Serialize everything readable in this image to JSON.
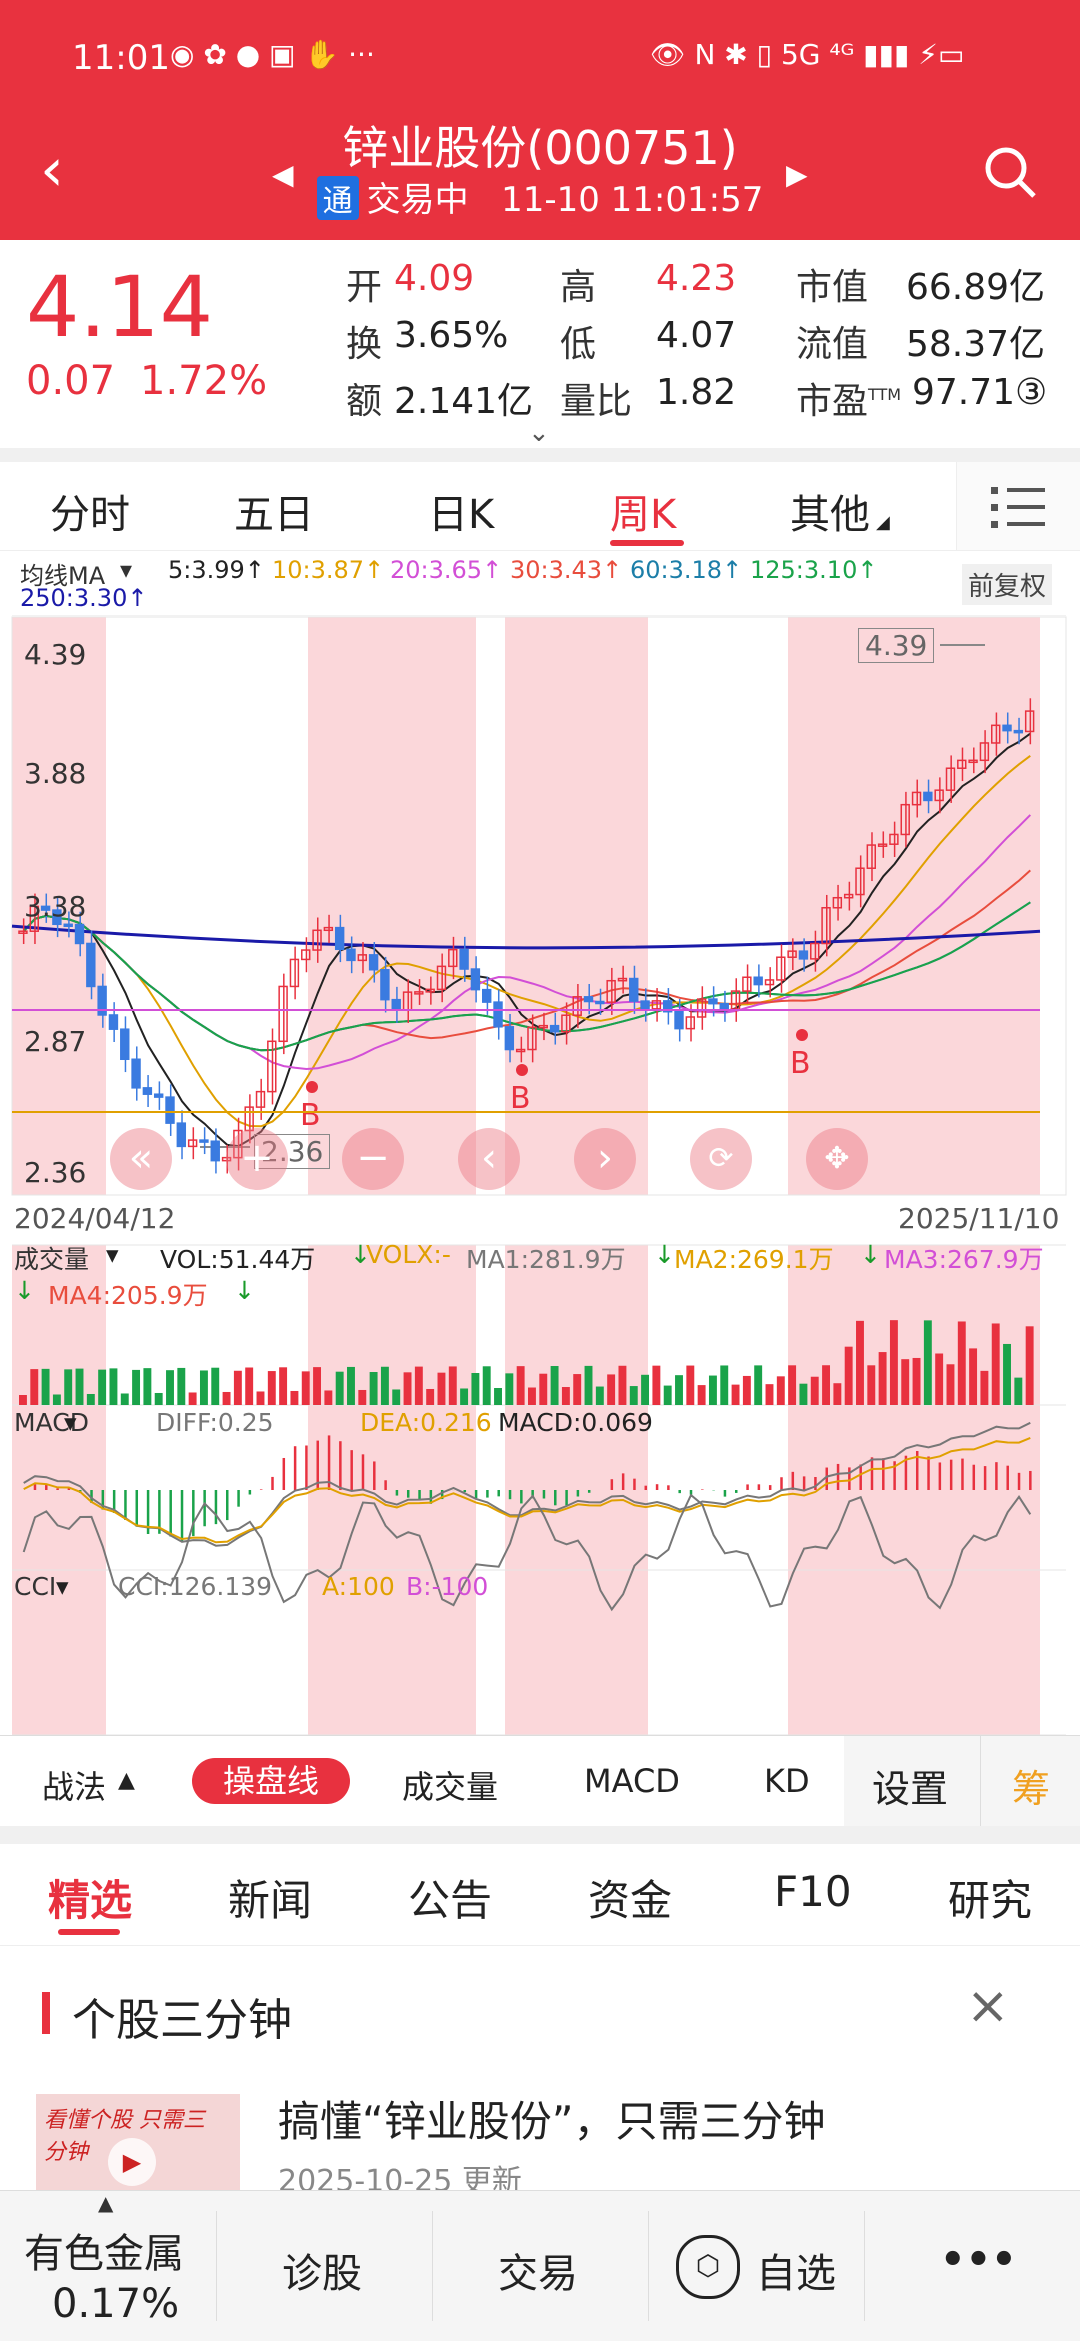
{
  "status": {
    "time": "11:01",
    "signal": "5G ⁴ᴳ",
    "battery": "⚡"
  },
  "header": {
    "title": "锌业股份(000751)",
    "tong": "通",
    "state": "交易中",
    "datetime": "11-10 11:01:57"
  },
  "quote": {
    "price": "4.14",
    "change": "0.07",
    "change_pct": "1.72%",
    "open_label": "开",
    "open": "4.09",
    "high_label": "高",
    "high": "4.23",
    "mcap_label": "市值",
    "mcap": "66.89亿",
    "turnover_label": "换",
    "turnover": "3.65%",
    "low_label": "低",
    "low": "4.07",
    "float_label": "流值",
    "float": "58.37亿",
    "amount_label": "额",
    "amount": "2.141亿",
    "volratio_label": "量比",
    "volratio": "1.82",
    "pe_label": "市盈",
    "pe_sup": "TTM",
    "pe": "97.71③"
  },
  "ktabs": [
    "分时",
    "五日",
    "日K",
    "周K",
    "其他"
  ],
  "ma_line": {
    "label": "均线MA",
    "items": [
      {
        "text": "5:3.99↑",
        "color": "#222"
      },
      {
        "text": "10:3.87↑",
        "color": "#e0a000"
      },
      {
        "text": "20:3.65↑",
        "color": "#d24fd6"
      },
      {
        "text": "30:3.43↑",
        "color": "#e84d3d"
      },
      {
        "text": "60:3.18↑",
        "color": "#1c7ea8"
      },
      {
        "text": "125:3.10↑",
        "color": "#1aa34a"
      }
    ],
    "ma250": "250:3.30↑",
    "adjust": "前复权"
  },
  "price_axis": [
    "4.39",
    "3.88",
    "3.38",
    "2.87",
    "2.36"
  ],
  "annotations": {
    "max": "4.39",
    "min": "2.36"
  },
  "dates": {
    "start": "2024/04/12",
    "end": "2025/11/10"
  },
  "volume": {
    "label": "成交量",
    "vol": "VOL:51.44万",
    "volx": "VOLX:-",
    "ma1": "MA1:281.9万",
    "ma2": "MA2:269.1万",
    "ma3": "MA3:267.9万",
    "ma4": "MA4:205.9万"
  },
  "macd": {
    "label": "MACD",
    "diff": "DIFF:0.25",
    "dea": "DEA:0.216",
    "macd": "MACD:0.069"
  },
  "cci": {
    "label": "CCI",
    "cci": "CCI:126.139",
    "a": "A:100",
    "b": "B:-100"
  },
  "toolbar": {
    "zhanfa": "战法",
    "caopan": "操盘线",
    "chengjiao": "成交量",
    "macd": "MACD",
    "kd": "KD",
    "settings": "设置",
    "chou": "筹"
  },
  "news_tabs": [
    "精选",
    "新闻",
    "公告",
    "资金",
    "F10",
    "研究"
  ],
  "section": {
    "title": "个股三分钟",
    "article_title": "搞懂“锌业股份”，只需三分钟",
    "article_date": "2025-10-25 更新",
    "thumb_text": "看懂个股 只需三分钟"
  },
  "bottom": {
    "sector": "有色金属",
    "sector_pct": "0.17%",
    "diagnose": "诊股",
    "trade": "交易",
    "watch": "自选",
    "more": "•••"
  }
}
